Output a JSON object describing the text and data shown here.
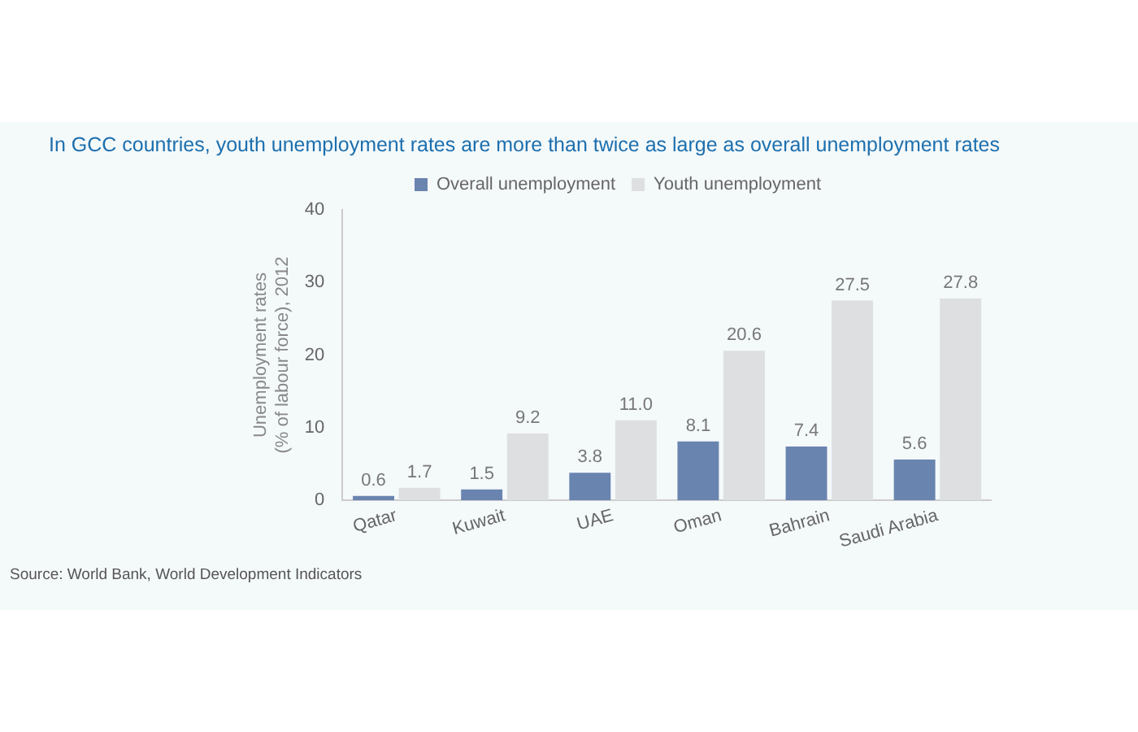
{
  "chart_data": {
    "type": "bar",
    "title": "In GCC countries, youth unemployment rates are more than twice as large as overall unemployment rates",
    "ylabel": "Unemployment rates\n(% of labour force), 2012",
    "categories": [
      "Qatar",
      "Kuwait",
      "UAE",
      "Oman",
      "Bahrain",
      "Saudi Arabia"
    ],
    "series": [
      {
        "name": "Overall unemployment",
        "color": "#6a84b0",
        "values": [
          0.6,
          1.5,
          3.8,
          8.1,
          7.4,
          5.6
        ]
      },
      {
        "name": "Youth unemployment",
        "color": "#dedfe0",
        "values": [
          1.7,
          9.2,
          11.0,
          20.6,
          27.5,
          27.8
        ],
        "value_labels": [
          "1.7",
          "9.2",
          "11.0",
          "20.6",
          "27.5",
          "27.8"
        ]
      }
    ],
    "ylim": [
      0,
      40
    ],
    "yticks": [
      0,
      10,
      20,
      30,
      40
    ],
    "grid": false,
    "legend": "top",
    "data_labels": true,
    "annotations": [
      "Source: World Bank, World Development Indicators"
    ]
  }
}
